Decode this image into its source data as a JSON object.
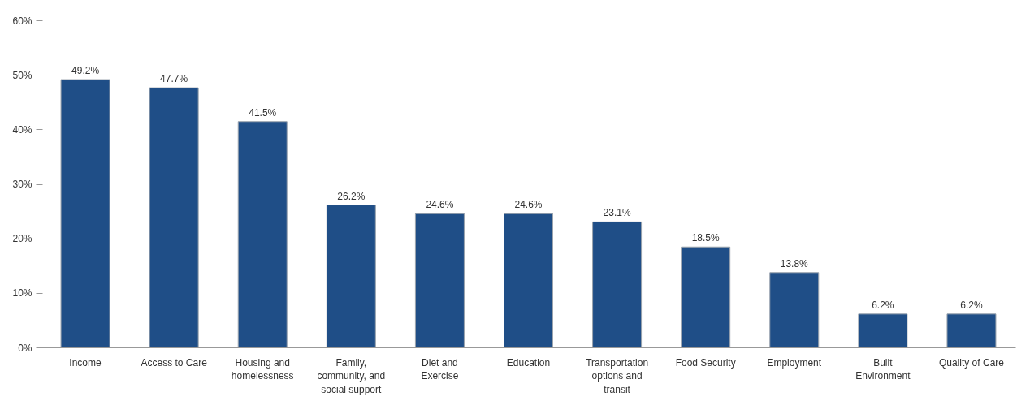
{
  "chart_data": {
    "type": "bar",
    "categories": [
      "Income",
      "Access to Care",
      "Housing and homelessness",
      "Family, community, and social support",
      "Diet and Exercise",
      "Education",
      "Transportation options and transit",
      "Food Security",
      "Employment",
      "Built Environment",
      "Quality of Care"
    ],
    "values": [
      49.2,
      47.7,
      41.5,
      26.2,
      24.6,
      24.6,
      23.1,
      18.5,
      13.8,
      6.2,
      6.2
    ],
    "value_labels": [
      "49.2%",
      "47.7%",
      "41.5%",
      "26.2%",
      "24.6%",
      "24.6%",
      "23.1%",
      "18.5%",
      "13.8%",
      "6.2%",
      "6.2%"
    ],
    "color": "#1f4e87",
    "ylim": [
      0,
      60
    ],
    "yticks": [
      {
        "value": 0,
        "label": "0%"
      },
      {
        "value": 10,
        "label": "10%"
      },
      {
        "value": 20,
        "label": "20%"
      },
      {
        "value": 30,
        "label": "30%"
      },
      {
        "value": 40,
        "label": "40%"
      },
      {
        "value": 50,
        "label": "50%"
      },
      {
        "value": 60,
        "label": "60%"
      }
    ],
    "grid": false
  }
}
